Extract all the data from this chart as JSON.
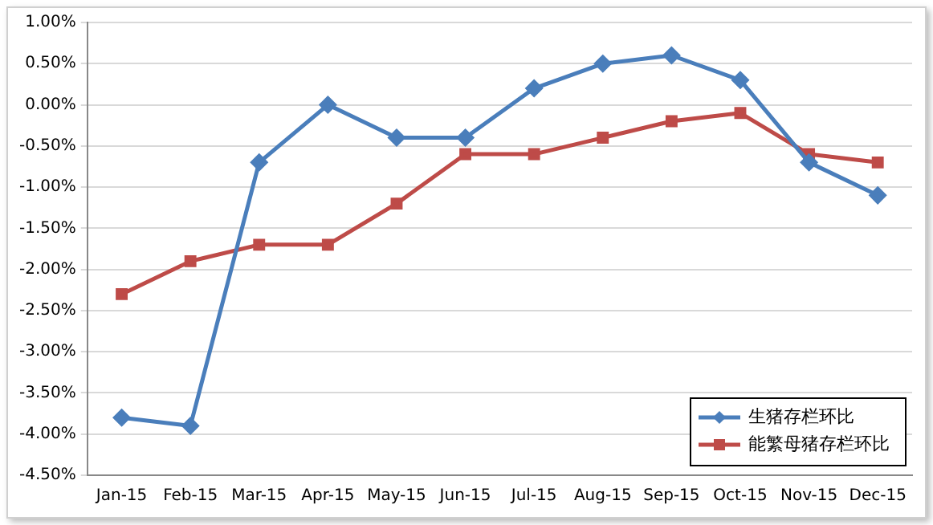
{
  "chart_data": {
    "type": "line",
    "categories": [
      "Jan-15",
      "Feb-15",
      "Mar-15",
      "Apr-15",
      "May-15",
      "Jun-15",
      "Jul-15",
      "Aug-15",
      "Sep-15",
      "Oct-15",
      "Nov-15",
      "Dec-15"
    ],
    "series": [
      {
        "name": "生猪存栏环比",
        "color": "#4a7ebb",
        "marker": "diamond",
        "values": [
          -3.8,
          -3.9,
          -0.7,
          0.0,
          -0.4,
          -0.4,
          0.2,
          0.5,
          0.6,
          0.3,
          -0.7,
          -1.1
        ]
      },
      {
        "name": "能繁母猪存栏环比",
        "color": "#be4b48",
        "marker": "square",
        "values": [
          -2.3,
          -1.9,
          -1.7,
          -1.7,
          -1.2,
          -0.6,
          -0.6,
          -0.4,
          -0.2,
          -0.1,
          -0.6,
          -0.7
        ]
      }
    ],
    "ylim": [
      -4.5,
      1
    ],
    "yticks": [
      {
        "value": 1,
        "label": "1.00%"
      },
      {
        "value": 0.5,
        "label": "0.50%"
      },
      {
        "value": 0,
        "label": "0.00%"
      },
      {
        "value": -0.5,
        "label": "-0.50%"
      },
      {
        "value": -1,
        "label": "-1.00%"
      },
      {
        "value": -1.5,
        "label": "-1.50%"
      },
      {
        "value": -2,
        "label": "-2.00%"
      },
      {
        "value": -2.5,
        "label": "-2.50%"
      },
      {
        "value": -3,
        "label": "-3.00%"
      },
      {
        "value": -3.5,
        "label": "-3.50%"
      },
      {
        "value": -4,
        "label": "-4.00%"
      },
      {
        "value": -4.5,
        "label": "-4.50%"
      }
    ],
    "grid": "y",
    "legend": "bottom right",
    "line_style": "solid"
  }
}
